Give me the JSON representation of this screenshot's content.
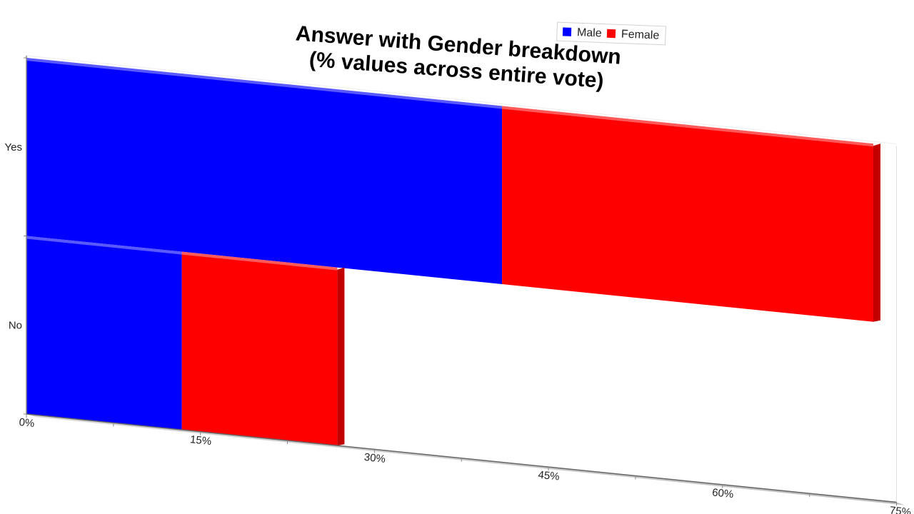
{
  "chart_data": {
    "type": "bar",
    "orientation": "horizontal",
    "stacked": true,
    "perspective_3d": true,
    "title": "Answer with Gender breakdown",
    "subtitle": "(% values across entire vote)",
    "categories": [
      "Yes",
      "No"
    ],
    "series": [
      {
        "name": "Male",
        "color": "#0000ff",
        "values": [
          41,
          13.4
        ]
      },
      {
        "name": "Female",
        "color": "#ff0000",
        "values": [
          32,
          13.4
        ]
      }
    ],
    "xlim": [
      0,
      75
    ],
    "x_ticks": [
      "0%",
      "15%",
      "30%",
      "45%",
      "60%",
      "75%"
    ],
    "legend_position": "top-right",
    "grid": false
  }
}
